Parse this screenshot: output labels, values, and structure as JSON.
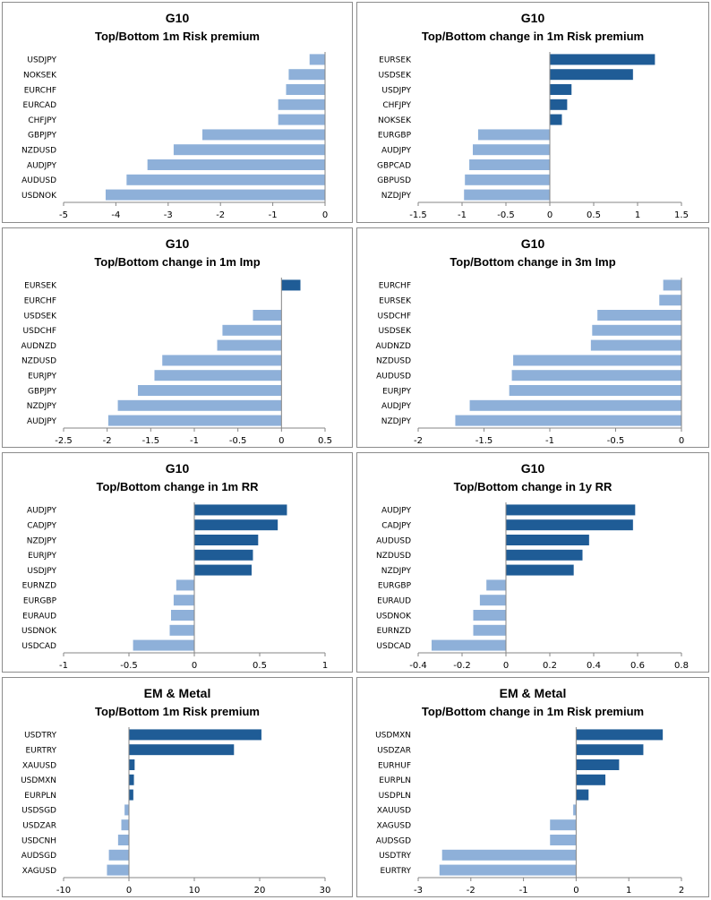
{
  "colors": {
    "positive": "#1f5c96",
    "negative": "#8eb0d9",
    "axis": "#868686",
    "border": "#8c8c8c"
  },
  "chart_data": [
    {
      "type": "bar",
      "orientation": "horizontal",
      "title": "G10",
      "subtitle": "Top/Bottom 1m Risk premium",
      "categories": [
        "USDJPY",
        "NOKSEK",
        "EURCHF",
        "EURCAD",
        "CHFJPY",
        "GBPJPY",
        "NZDUSD",
        "AUDJPY",
        "AUDUSD",
        "USDNOK"
      ],
      "values": [
        -0.3,
        -0.7,
        -0.75,
        -0.9,
        -0.9,
        -2.35,
        -2.9,
        -3.4,
        -3.8,
        -4.2
      ],
      "xlim": [
        -5,
        0
      ],
      "xticks": [
        -5,
        -4,
        -3,
        -2,
        -1,
        0
      ],
      "grid": false,
      "legend": "none"
    },
    {
      "type": "bar",
      "orientation": "horizontal",
      "title": "G10",
      "subtitle": "Top/Bottom change in 1m Risk premium",
      "categories": [
        "EURSEK",
        "USDSEK",
        "USDJPY",
        "CHFJPY",
        "NOKSEK",
        "EURGBP",
        "AUDJPY",
        "GBPCAD",
        "GBPUSD",
        "NZDJPY"
      ],
      "values": [
        1.2,
        0.95,
        0.25,
        0.2,
        0.14,
        -0.82,
        -0.88,
        -0.92,
        -0.97,
        -0.98
      ],
      "xlim": [
        -1.5,
        1.5
      ],
      "xticks": [
        -1.5,
        -1,
        -0.5,
        0,
        0.5,
        1,
        1.5
      ],
      "grid": false,
      "legend": "none"
    },
    {
      "type": "bar",
      "orientation": "horizontal",
      "title": "G10",
      "subtitle": "Top/Bottom change in 1m Imp",
      "categories": [
        "EURSEK",
        "EURCHF",
        "USDSEK",
        "USDCHF",
        "AUDNZD",
        "NZDUSD",
        "EURJPY",
        "GBPJPY",
        "NZDJPY",
        "AUDJPY"
      ],
      "values": [
        0.22,
        0.0,
        -0.33,
        -0.68,
        -0.74,
        -1.37,
        -1.46,
        -1.65,
        -1.88,
        -1.99
      ],
      "xlim": [
        -2.5,
        0.5
      ],
      "xticks": [
        -2.5,
        -2,
        -1.5,
        -1,
        -0.5,
        0,
        0.5
      ],
      "grid": false,
      "legend": "none"
    },
    {
      "type": "bar",
      "orientation": "horizontal",
      "title": "G10",
      "subtitle": "Top/Bottom change in 3m Imp",
      "categories": [
        "EURCHF",
        "EURSEK",
        "USDCHF",
        "USDSEK",
        "AUDNZD",
        "NZDUSD",
        "AUDUSD",
        "EURJPY",
        "AUDJPY",
        "NZDJPY"
      ],
      "values": [
        -0.14,
        -0.17,
        -0.64,
        -0.68,
        -0.69,
        -1.28,
        -1.29,
        -1.31,
        -1.61,
        -1.72
      ],
      "xlim": [
        -2,
        0
      ],
      "xticks": [
        -2,
        -1.5,
        -1,
        -0.5,
        0
      ],
      "grid": false,
      "legend": "none"
    },
    {
      "type": "bar",
      "orientation": "horizontal",
      "title": "G10",
      "subtitle": "Top/Bottom change in 1m RR",
      "categories": [
        "AUDJPY",
        "CADJPY",
        "NZDJPY",
        "EURJPY",
        "USDJPY",
        "EURNZD",
        "EURGBP",
        "EURAUD",
        "USDNOK",
        "USDCAD"
      ],
      "values": [
        0.71,
        0.64,
        0.49,
        0.45,
        0.44,
        -0.14,
        -0.16,
        -0.18,
        -0.19,
        -0.47
      ],
      "xlim": [
        -1,
        1
      ],
      "xticks": [
        -1,
        -0.5,
        0,
        0.5,
        1
      ],
      "grid": false,
      "legend": "none"
    },
    {
      "type": "bar",
      "orientation": "horizontal",
      "title": "G10",
      "subtitle": "Top/Bottom change in 1y RR",
      "categories": [
        "AUDJPY",
        "CADJPY",
        "AUDUSD",
        "NZDUSD",
        "NZDJPY",
        "EURGBP",
        "EURAUD",
        "USDNOK",
        "EURNZD",
        "USDCAD"
      ],
      "values": [
        0.59,
        0.58,
        0.38,
        0.35,
        0.31,
        -0.09,
        -0.12,
        -0.15,
        -0.15,
        -0.34
      ],
      "xlim": [
        -0.4,
        0.8
      ],
      "xticks": [
        -0.4,
        -0.2,
        0,
        0.2,
        0.4,
        0.6,
        0.8
      ],
      "grid": false,
      "legend": "none"
    },
    {
      "type": "bar",
      "orientation": "horizontal",
      "title": "EM & Metal",
      "subtitle": "Top/Bottom 1m Risk premium",
      "categories": [
        "USDTRY",
        "EURTRY",
        "XAUUSD",
        "USDMXN",
        "EURPLN",
        "USDSGD",
        "USDZAR",
        "USDCNH",
        "AUDSGD",
        "XAGUSD"
      ],
      "values": [
        20.3,
        16.1,
        0.9,
        0.8,
        0.7,
        -0.7,
        -1.2,
        -1.7,
        -3.1,
        -3.4
      ],
      "xlim": [
        -10,
        30
      ],
      "xticks": [
        -10,
        0,
        10,
        20,
        30
      ],
      "grid": false,
      "legend": "none"
    },
    {
      "type": "bar",
      "orientation": "horizontal",
      "title": "EM & Metal",
      "subtitle": "Top/Bottom change in 1m Risk premium",
      "categories": [
        "USDMXN",
        "USDZAR",
        "EURHUF",
        "EURPLN",
        "USDPLN",
        "XAUUSD",
        "XAGUSD",
        "AUDSGD",
        "USDTRY",
        "EURTRY"
      ],
      "values": [
        1.65,
        1.28,
        0.82,
        0.56,
        0.24,
        -0.06,
        -0.5,
        -0.5,
        -2.55,
        -2.6
      ],
      "xlim": [
        -3,
        2
      ],
      "xticks": [
        -3,
        -2,
        -1,
        0,
        1,
        2
      ],
      "grid": false,
      "legend": "none"
    }
  ]
}
